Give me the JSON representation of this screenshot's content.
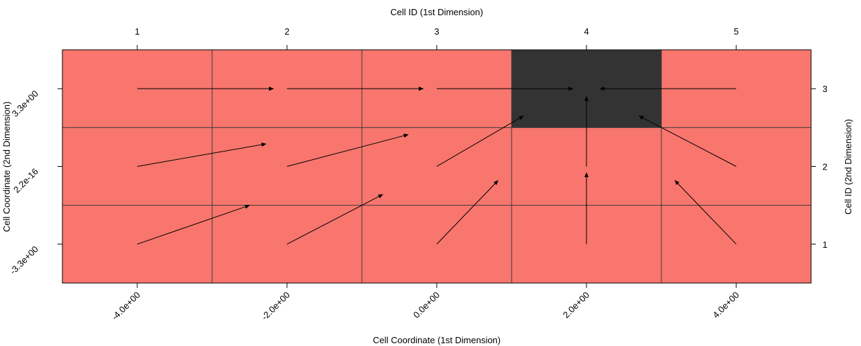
{
  "chart_data": {
    "type": "heatmap",
    "title": "",
    "xlabel": "Cell Coordinate (1st Dimension)",
    "ylabel": "Cell Coordinate (2nd Dimension)",
    "x2label": "Cell ID (1st Dimension)",
    "y2label": "Cell ID (2nd Dimension)",
    "grid": true,
    "x_ids": [
      "1",
      "2",
      "3",
      "4",
      "5"
    ],
    "y_ids": [
      "1",
      "2",
      "3"
    ],
    "x_ticks": [
      "-4.0e+00",
      "-2.0e+00",
      "0.0e+00",
      "2.0e+00",
      "4.0e+00"
    ],
    "y_ticks": [
      "-3.3e+00",
      "2.2e-16",
      "3.3e+00"
    ],
    "cells": [
      {
        "x": 1,
        "y": 1,
        "state": "normal"
      },
      {
        "x": 2,
        "y": 1,
        "state": "normal"
      },
      {
        "x": 3,
        "y": 1,
        "state": "normal"
      },
      {
        "x": 4,
        "y": 1,
        "state": "normal"
      },
      {
        "x": 5,
        "y": 1,
        "state": "normal"
      },
      {
        "x": 1,
        "y": 2,
        "state": "normal"
      },
      {
        "x": 2,
        "y": 2,
        "state": "normal"
      },
      {
        "x": 3,
        "y": 2,
        "state": "normal"
      },
      {
        "x": 4,
        "y": 2,
        "state": "normal"
      },
      {
        "x": 5,
        "y": 2,
        "state": "normal"
      },
      {
        "x": 1,
        "y": 3,
        "state": "normal"
      },
      {
        "x": 2,
        "y": 3,
        "state": "normal"
      },
      {
        "x": 3,
        "y": 3,
        "state": "normal"
      },
      {
        "x": 4,
        "y": 3,
        "state": "target"
      },
      {
        "x": 5,
        "y": 3,
        "state": "normal"
      }
    ],
    "arrows": [
      {
        "from": [
          1,
          3
        ],
        "to": [
          1.91,
          3.0
        ]
      },
      {
        "from": [
          2,
          3
        ],
        "to": [
          2.91,
          3.0
        ]
      },
      {
        "from": [
          3,
          3
        ],
        "to": [
          3.91,
          3.0
        ]
      },
      {
        "from": [
          5,
          3
        ],
        "to": [
          4.09,
          3.0
        ]
      },
      {
        "from": [
          1,
          2
        ],
        "to": [
          1.86,
          2.29
        ]
      },
      {
        "from": [
          2,
          2
        ],
        "to": [
          2.81,
          2.41
        ]
      },
      {
        "from": [
          3,
          2
        ],
        "to": [
          3.58,
          2.65
        ]
      },
      {
        "from": [
          4,
          2
        ],
        "to": [
          4.0,
          2.9
        ]
      },
      {
        "from": [
          5,
          2
        ],
        "to": [
          4.35,
          2.65
        ]
      },
      {
        "from": [
          1,
          1
        ],
        "to": [
          1.75,
          1.5
        ]
      },
      {
        "from": [
          2,
          1
        ],
        "to": [
          2.64,
          1.64
        ]
      },
      {
        "from": [
          3,
          1
        ],
        "to": [
          3.41,
          1.82
        ]
      },
      {
        "from": [
          4,
          1
        ],
        "to": [
          4.0,
          1.92
        ]
      },
      {
        "from": [
          5,
          1
        ],
        "to": [
          4.59,
          1.82
        ]
      }
    ],
    "colors": {
      "normal": "#f8766d",
      "target": "#333333",
      "grid": "#3a3a3a",
      "arrow": "#000000"
    }
  }
}
